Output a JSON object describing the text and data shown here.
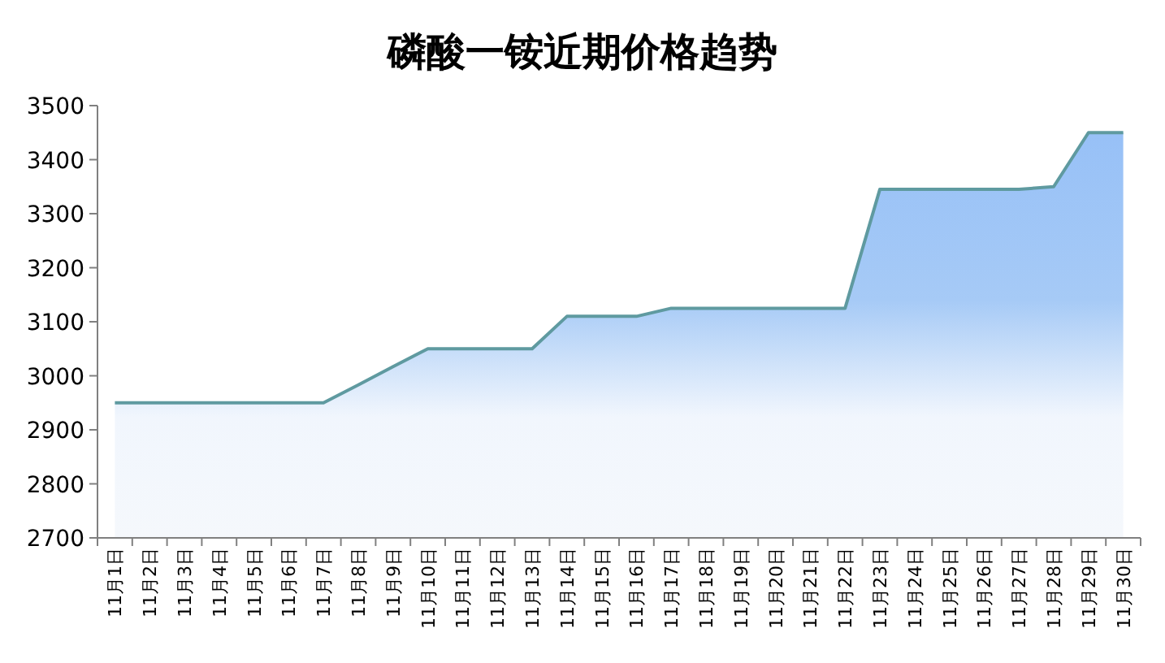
{
  "chart_data": {
    "type": "area",
    "title": "磷酸一铵近期价格趋势",
    "categories": [
      "11月1日",
      "11月2日",
      "11月3日",
      "11月4日",
      "11月5日",
      "11月6日",
      "11月7日",
      "11月8日",
      "11月9日",
      "11月10日",
      "11月11日",
      "11月12日",
      "11月13日",
      "11月14日",
      "11月15日",
      "11月16日",
      "11月17日",
      "11月18日",
      "11月19日",
      "11月20日",
      "11月21日",
      "11月22日",
      "11月23日",
      "11月24日",
      "11月25日",
      "11月26日",
      "11月27日",
      "11月28日",
      "11月29日",
      "11月30日"
    ],
    "series": [
      {
        "color": "#5f9aa0",
        "values": [
          2950,
          2950,
          2950,
          2950,
          2950,
          2950,
          2950,
          2983,
          3017,
          3050,
          3050,
          3050,
          3050,
          3110,
          3110,
          3110,
          3125,
          3125,
          3125,
          3125,
          3125,
          3125,
          3345,
          3345,
          3345,
          3345,
          3345,
          3350,
          3450,
          3450
        ]
      }
    ],
    "ylim": [
      2700,
      3500
    ],
    "yticks": [
      2700,
      2800,
      2900,
      3000,
      3100,
      3200,
      3300,
      3400,
      3500
    ],
    "grid": false
  }
}
